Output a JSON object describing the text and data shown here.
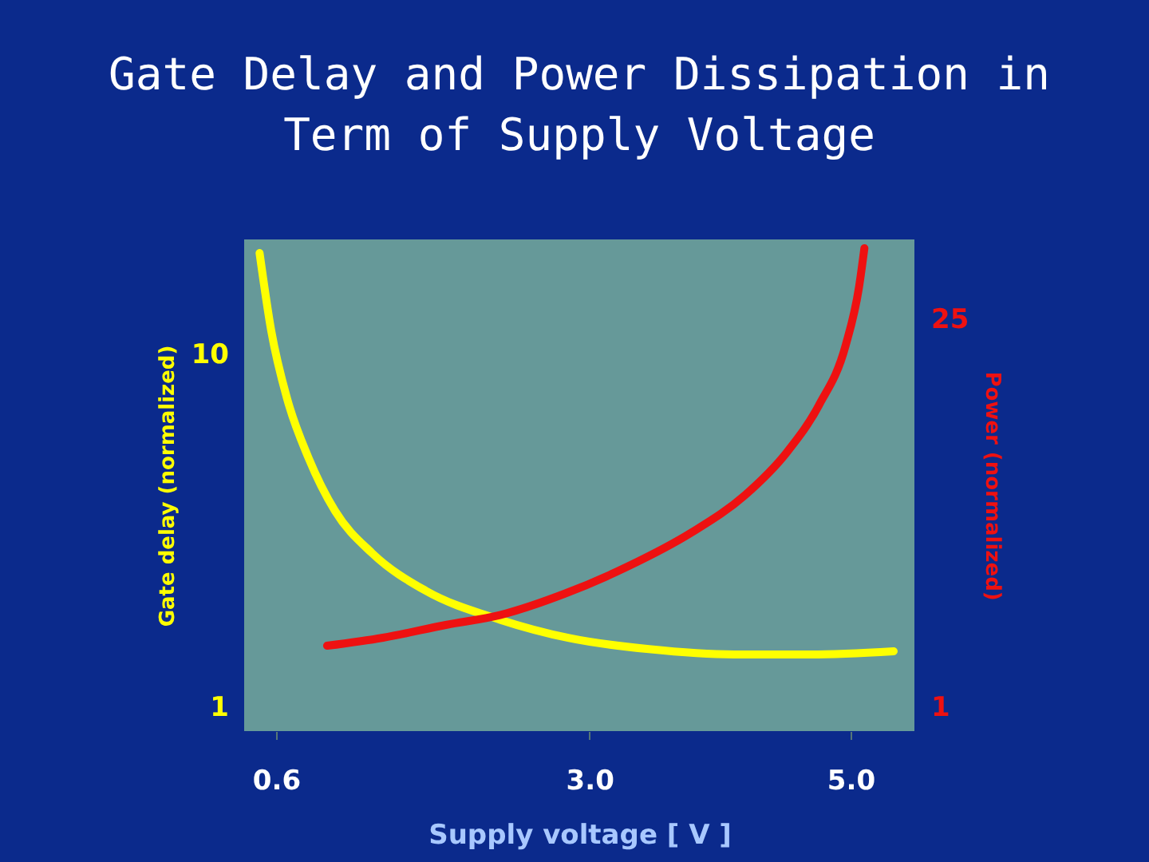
{
  "chart_data": {
    "type": "line",
    "title": "Gate Delay and Power Dissipation in Term of Supply Voltage",
    "xlabel": "Supply voltage [ V ]",
    "ylabel": "Gate delay (normalized)",
    "y2label": "Power (normalized)",
    "xlim": [
      0.356,
      5.489
    ],
    "xticks": [
      {
        "value": 0.6,
        "label": "0.6"
      },
      {
        "value": 3,
        "label": "3.0"
      },
      {
        "value": 5,
        "label": "5.0"
      }
    ],
    "ylim": [
      0.855,
      21.2
    ],
    "yticks": [
      1,
      10
    ],
    "y2lim": [
      -0.48,
      29.94
    ],
    "y2ticks": [
      1,
      25
    ],
    "log": true,
    "grid": false,
    "series": [
      {
        "color": "#ffff00",
        "x": [
          0.474,
          0.563,
          0.686,
          0.848,
          1.052,
          1.337,
          1.745,
          2.315,
          2.845,
          3.456,
          4.108,
          4.678,
          5.33
        ],
        "values": [
          19.4,
          11.7,
          7.47,
          5.1,
          3.6,
          2.73,
          2.14,
          1.77,
          1.57,
          1.46,
          1.41,
          1.41,
          1.44
        ]
      },
      {
        "color": "#ee1111",
        "axis": "y2",
        "x": [
          0.991,
          1.419,
          1.908,
          2.315,
          2.804,
          3.293,
          3.781,
          4.189,
          4.515,
          4.759,
          4.963,
          5.065,
          5.106
        ],
        "values": [
          4.8,
          5.3,
          6.1,
          6.7,
          8.0,
          9.7,
          11.8,
          14.1,
          16.8,
          19.7,
          23.4,
          27.0,
          29.4
        ]
      }
    ]
  }
}
